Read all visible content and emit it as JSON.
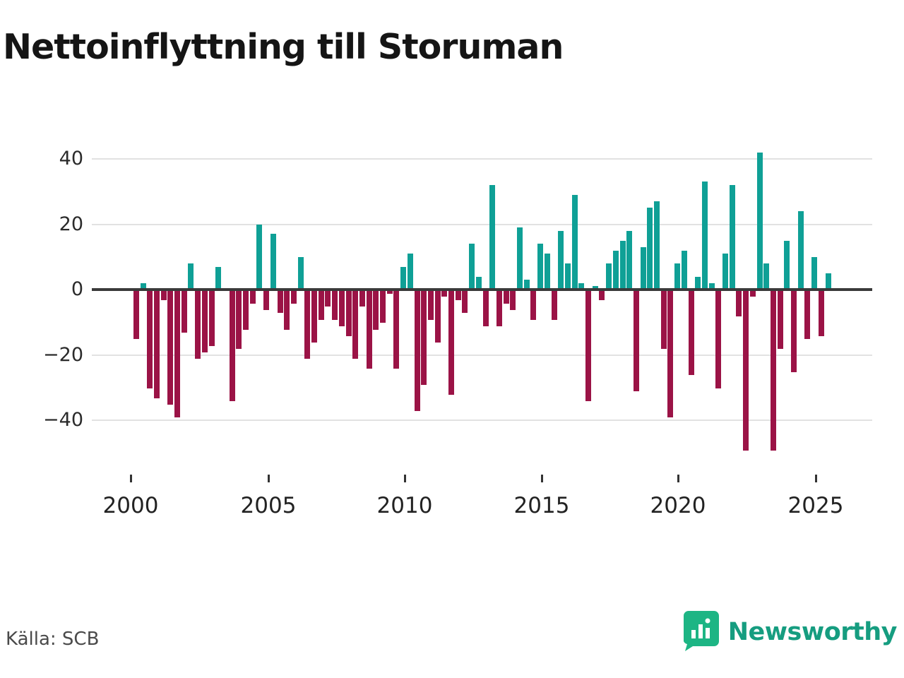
{
  "title": "Nettoinflyttning till Storuman",
  "source": "Källa: SCB",
  "logo": {
    "text": "Newsworthy",
    "icon": "bar-chart-pin-icon",
    "icon_color": "#1db584",
    "text_color": "#169d80"
  },
  "chart_data": {
    "type": "bar",
    "title": "Nettoinflyttning till Storuman",
    "frequency": "quarterly",
    "x_start": "2000 Q1",
    "x_end": "2025 Q2",
    "start_year": 2000,
    "values": [
      -15,
      2,
      -30,
      -33,
      -3,
      -35,
      -39,
      -13,
      8,
      -21,
      -19,
      -17,
      7,
      0,
      -34,
      -18,
      -12,
      -4,
      20,
      -6,
      17,
      -7,
      -12,
      -4,
      10,
      -21,
      -16,
      -9,
      -5,
      -9,
      -11,
      -14,
      -21,
      -5,
      -24,
      -12,
      -10,
      -1,
      -24,
      7,
      11,
      -37,
      -29,
      -9,
      -16,
      -2,
      -32,
      -3,
      -7,
      14,
      4,
      -11,
      32,
      -11,
      -4,
      -6,
      19,
      3,
      -9,
      14,
      11,
      -9,
      18,
      8,
      29,
      2,
      -34,
      1,
      -3,
      8,
      12,
      15,
      18,
      -31,
      13,
      25,
      27,
      -18,
      -39,
      8,
      12,
      -26,
      4,
      33,
      2,
      -30,
      11,
      32,
      -8,
      -49,
      -2,
      42,
      8,
      -49,
      -18,
      15,
      -25,
      24,
      -15,
      10,
      -14,
      5
    ],
    "y_ticks": [
      40,
      20,
      0,
      -20,
      -40
    ],
    "y_tick_labels": [
      "40",
      "20",
      "0",
      "−20",
      "−40"
    ],
    "ylim": [
      -52,
      46
    ],
    "x_tick_labels": [
      "2000",
      "2005",
      "2010",
      "2015",
      "2020",
      "2025"
    ],
    "grid": true,
    "legend": "none",
    "positive_color": "#0fa096",
    "negative_color": "#9b1346",
    "zero_line_color": "#3a3a3a",
    "grid_color": "#e2e2e2"
  }
}
